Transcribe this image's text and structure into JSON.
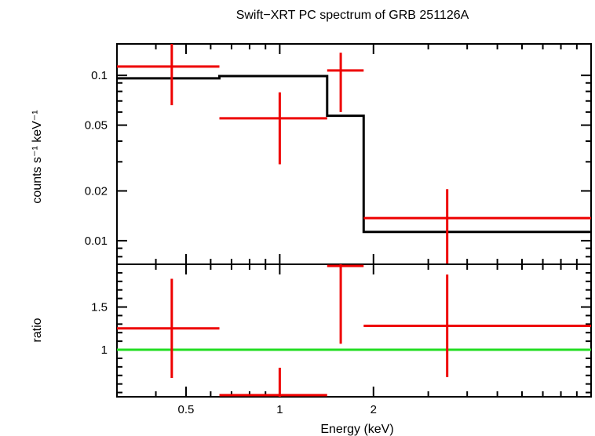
{
  "chart_data": {
    "title": "Swift−XRT PC spectrum of GRB 251126A",
    "xlabel": "Energy (keV)",
    "x_scale": "log",
    "xlim": [
      0.3,
      10
    ],
    "x_ticks": [
      {
        "value": 0.5,
        "label": "0.5"
      },
      {
        "value": 1,
        "label": "1"
      },
      {
        "value": 2,
        "label": "2"
      }
    ],
    "colors": {
      "data": "#ee0000",
      "model": "#000000",
      "unity": "#22dd22"
    },
    "panels": [
      {
        "id": "spectrum",
        "type": "scatter",
        "ylabel": "counts s⁻¹ keV⁻¹",
        "y_scale": "log",
        "ylim": [
          0.0072,
          0.155
        ],
        "y_ticks": [
          {
            "value": 0.01,
            "label": "0.01"
          },
          {
            "value": 0.02,
            "label": "0.02"
          },
          {
            "value": 0.05,
            "label": "0.05"
          },
          {
            "value": 0.1,
            "label": "0.1"
          }
        ],
        "data": [
          {
            "x": 0.45,
            "xlo": 0.3,
            "xhi": 0.64,
            "y": 0.113,
            "ylo": 0.066,
            "yhi": 0.155
          },
          {
            "x": 1.0,
            "xlo": 0.64,
            "xhi": 1.42,
            "y": 0.055,
            "ylo": 0.029,
            "yhi": 0.079
          },
          {
            "x": 1.57,
            "xlo": 1.42,
            "xhi": 1.86,
            "y": 0.107,
            "ylo": 0.06,
            "yhi": 0.137
          },
          {
            "x": 3.45,
            "xlo": 1.86,
            "xhi": 10,
            "y": 0.0137,
            "ylo": 0.0072,
            "yhi": 0.0205
          }
        ],
        "model_steps": [
          {
            "x0": 0.3,
            "x1": 0.64,
            "y": 0.096
          },
          {
            "x0": 0.64,
            "x1": 1.42,
            "y": 0.099
          },
          {
            "x0": 1.42,
            "x1": 1.86,
            "y": 0.057
          },
          {
            "x0": 1.86,
            "x1": 10,
            "y": 0.0113
          }
        ]
      },
      {
        "id": "ratio",
        "type": "scatter",
        "ylabel": "ratio",
        "y_scale": "linear",
        "ylim": [
          0.45,
          2.0
        ],
        "y_ticks": [
          {
            "value": 1,
            "label": "1"
          },
          {
            "value": 1.5,
            "label": "1.5"
          }
        ],
        "reference_line": 1,
        "data": [
          {
            "x": 0.45,
            "xlo": 0.3,
            "xhi": 0.64,
            "y": 1.25,
            "ylo": 0.67,
            "yhi": 1.83
          },
          {
            "x": 1.0,
            "xlo": 0.64,
            "xhi": 1.42,
            "y": 0.47,
            "ylo": 0.45,
            "yhi": 0.79
          },
          {
            "x": 1.57,
            "xlo": 1.42,
            "xhi": 1.86,
            "y": 1.98,
            "ylo": 1.07,
            "yhi": 2.0
          },
          {
            "x": 3.45,
            "xlo": 1.86,
            "xhi": 10,
            "y": 1.28,
            "ylo": 0.68,
            "yhi": 1.88
          }
        ]
      }
    ]
  }
}
